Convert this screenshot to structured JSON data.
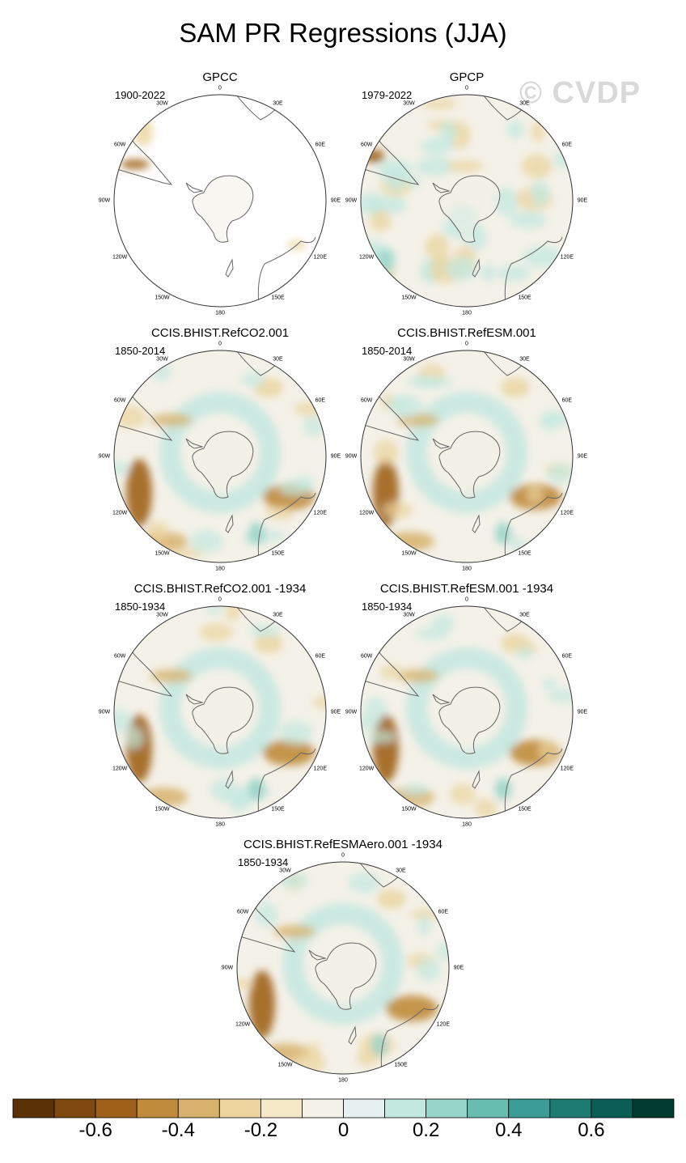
{
  "title": "SAM PR Regressions (JJA)",
  "watermark": "© CVDP",
  "lon_labels": [
    "0",
    "30E",
    "60E",
    "90E",
    "120E",
    "150E",
    "180",
    "150W",
    "120W",
    "90W",
    "60W",
    "30W"
  ],
  "panels": [
    {
      "name": "GPCC",
      "period": "1900-2022",
      "pattern": "sparse"
    },
    {
      "name": "GPCP",
      "period": "1979-2022",
      "pattern": "noisy"
    },
    {
      "name": "CCIS.BHIST.RefCO2.001",
      "period": "1850-2014",
      "pattern": "ring"
    },
    {
      "name": "CCIS.BHIST.RefESM.001",
      "period": "1850-2014",
      "pattern": "ring"
    },
    {
      "name": "CCIS.BHIST.RefCO2.001 -1934",
      "period": "1850-1934",
      "pattern": "ring"
    },
    {
      "name": "CCIS.BHIST.RefESM.001 -1934",
      "period": "1850-1934",
      "pattern": "ring"
    },
    {
      "name": "CCIS.BHIST.RefESMAero.001 -1934",
      "period": "1850-1934",
      "pattern": "ring"
    }
  ],
  "colorbar": {
    "colors": [
      "#5a3206",
      "#7e480f",
      "#a0621a",
      "#c08b3a",
      "#d8b26c",
      "#ebd49e",
      "#f5e8c7",
      "#f4f1e8",
      "#e6f0f0",
      "#c3e8e0",
      "#97d4c9",
      "#68bdb1",
      "#3a9c94",
      "#1c7c73",
      "#0b5e55",
      "#003c30"
    ],
    "labels": [
      "-0.6",
      "-0.4",
      "-0.2",
      "0",
      "0.2",
      "0.4",
      "0.6"
    ],
    "label_values": [
      -0.6,
      -0.4,
      -0.2,
      0,
      0.2,
      0.4,
      0.6
    ],
    "min": -0.8,
    "max": 0.8
  }
}
